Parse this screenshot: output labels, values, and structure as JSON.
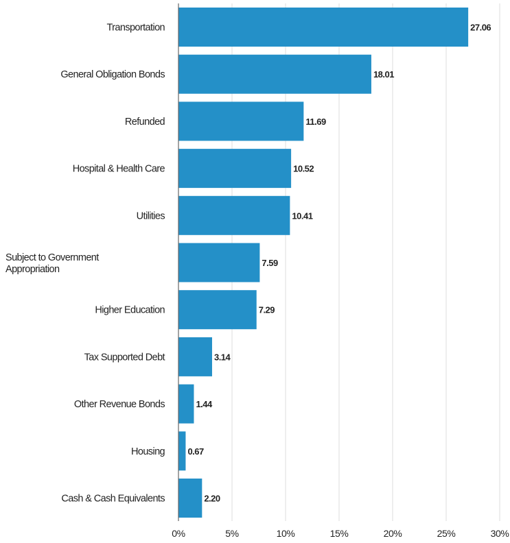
{
  "chart_data": {
    "type": "bar",
    "orientation": "horizontal",
    "categories": [
      "Transportation",
      "General Obligation Bonds",
      "Refunded",
      "Hospital & Health Care",
      "Utilities",
      "Subject to Government Appropriation",
      "Higher Education",
      "Tax Supported Debt",
      "Other Revenue Bonds",
      "Housing",
      "Cash & Cash Equivalents"
    ],
    "values": [
      27.06,
      18.01,
      11.69,
      10.52,
      10.41,
      7.59,
      7.29,
      3.14,
      1.44,
      0.67,
      2.2
    ],
    "value_labels": [
      "27.06",
      "18.01",
      "11.69",
      "10.52",
      "10.41",
      "7.59",
      "7.29",
      "3.14",
      "1.44",
      "0.67",
      "2.20"
    ],
    "xlim": [
      0,
      30
    ],
    "x_ticks": [
      0,
      5,
      10,
      15,
      20,
      25,
      30
    ],
    "x_tick_labels": [
      "0%",
      "5%",
      "10%",
      "15%",
      "20%",
      "25%",
      "30%"
    ],
    "title": "",
    "xlabel": "",
    "ylabel": "",
    "grid": "vertical",
    "colors": {
      "bar": "#2490C8",
      "grid": "#dddddd",
      "axis": "#666666",
      "text": "#222222"
    }
  }
}
